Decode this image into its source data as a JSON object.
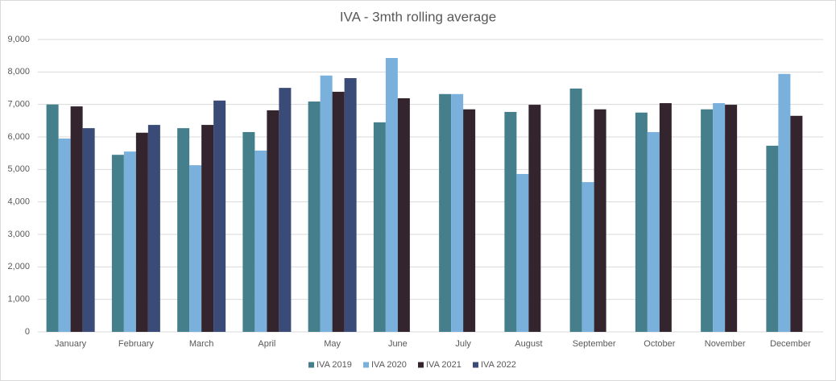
{
  "chart_data": {
    "type": "bar",
    "title": "IVA - 3mth rolling average",
    "categories": [
      "January",
      "February",
      "March",
      "April",
      "May",
      "June",
      "July",
      "August",
      "September",
      "October",
      "November",
      "December"
    ],
    "series": [
      {
        "name": "IVA 2019",
        "color": "#467f8c",
        "values": [
          7000,
          5450,
          6270,
          6150,
          7090,
          6450,
          7320,
          6770,
          7490,
          6750,
          6850,
          5730
        ]
      },
      {
        "name": "IVA 2020",
        "color": "#7ab0dc",
        "values": [
          5950,
          5550,
          5130,
          5580,
          7890,
          8430,
          7320,
          4860,
          4610,
          6150,
          7040,
          7940
        ]
      },
      {
        "name": "IVA 2021",
        "color": "#33242e",
        "values": [
          6940,
          6130,
          6370,
          6820,
          7390,
          7190,
          6850,
          6990,
          6850,
          7040,
          6990,
          6650
        ]
      },
      {
        "name": "IVA 2022",
        "color": "#3b4b78",
        "values": [
          6270,
          6370,
          7120,
          7510,
          7810,
          null,
          null,
          null,
          null,
          null,
          null,
          null
        ]
      }
    ],
    "ylim": [
      0,
      9000
    ],
    "yticks": [
      0,
      {
        "value": 1000,
        "label": "1,000"
      },
      {
        "value": 2000,
        "label": "2,000"
      },
      {
        "value": 3000,
        "label": "3,000"
      },
      {
        "value": 4000,
        "label": "4,000"
      },
      {
        "value": 5000,
        "label": "5,000"
      },
      {
        "value": 6000,
        "label": "6,000"
      },
      {
        "value": 7000,
        "label": "7,000"
      },
      {
        "value": 8000,
        "label": "8,000"
      },
      {
        "value": 9000,
        "label": "9,000"
      }
    ],
    "grid": true,
    "legend": "bottom"
  }
}
